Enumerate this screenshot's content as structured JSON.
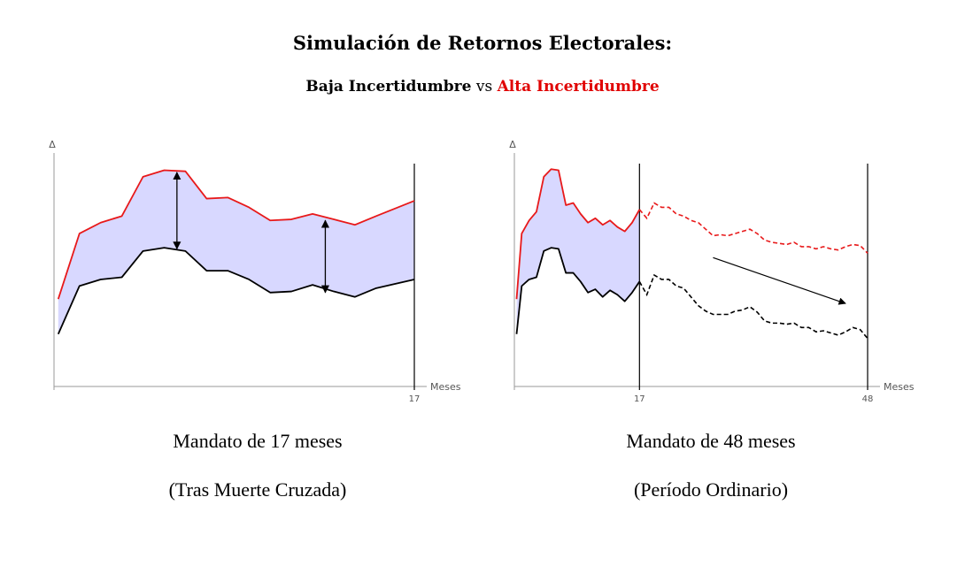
{
  "header": {
    "title": "Simulación de Retornos Electorales:",
    "subtitle_low": "Baja Incertidumbre",
    "subtitle_vs": "vs",
    "subtitle_high": "Alta Incertidumbre"
  },
  "colors": {
    "high": "#e8191a",
    "low": "#000000",
    "fill": "#d8d8ff"
  },
  "chart_data": [
    {
      "type": "line",
      "ylabel": "Δ",
      "xlabel": "Meses",
      "xticks": [
        "17"
      ],
      "xlim": [
        0,
        17
      ],
      "ylim": [
        0,
        10
      ],
      "area_between_series": true,
      "series": [
        {
          "style": "solid",
          "color": "#e8191a",
          "x": [
            0.2,
            1.2,
            2.2,
            3.2,
            4.2,
            5.2,
            6.2,
            7.2,
            8.2,
            9.2,
            10.2,
            11.2,
            12.2,
            13.2,
            14.2,
            15.2,
            17
          ],
          "y": [
            4.0,
            7.0,
            7.5,
            7.8,
            9.6,
            9.9,
            9.85,
            8.6,
            8.65,
            8.2,
            7.6,
            7.65,
            7.9,
            7.65,
            7.4,
            7.8,
            8.5
          ]
        },
        {
          "style": "solid",
          "color": "#000000",
          "x": [
            0.2,
            1.2,
            2.2,
            3.2,
            4.2,
            5.2,
            6.2,
            7.2,
            8.2,
            9.2,
            10.2,
            11.2,
            12.2,
            13.2,
            14.2,
            15.2,
            17
          ],
          "y": [
            2.4,
            4.6,
            4.9,
            5.0,
            6.2,
            6.35,
            6.2,
            5.3,
            5.3,
            4.9,
            4.3,
            4.35,
            4.65,
            4.35,
            4.1,
            4.5,
            4.9
          ]
        }
      ],
      "annotations": [
        {
          "type": "double-arrow",
          "x": 5.8,
          "y_from": 6.3,
          "y_to": 9.8
        },
        {
          "type": "double-arrow",
          "x": 12.8,
          "y_from": 4.3,
          "y_to": 7.6
        }
      ],
      "caption_line1": "Mandato de 17 meses",
      "caption_line2": "(Tras Muerte Cruzada)"
    },
    {
      "type": "line",
      "ylabel": "Δ",
      "xlabel": "Meses",
      "xticks": [
        "17",
        "48"
      ],
      "xlim": [
        0,
        48
      ],
      "ylim": [
        0,
        10
      ],
      "area_between_series": true,
      "area_until_x": 17,
      "dashed_after_x": 17,
      "series": [
        {
          "style": "solid-then-dashed",
          "color": "#e8191a",
          "x": [
            0.3,
            1,
            2,
            3,
            4,
            5,
            6,
            7,
            8,
            9,
            10,
            11,
            12,
            13,
            14,
            15,
            16,
            17,
            18,
            19,
            20,
            21,
            22,
            23,
            24,
            25,
            26,
            27,
            28,
            29,
            30,
            31,
            32,
            33,
            34,
            35,
            36,
            37,
            38,
            39,
            40,
            41,
            42,
            43,
            44,
            45,
            46,
            47,
            48
          ],
          "y": [
            4.0,
            7.0,
            7.6,
            8.0,
            9.6,
            9.95,
            9.9,
            8.3,
            8.4,
            7.9,
            7.5,
            7.7,
            7.4,
            7.6,
            7.3,
            7.1,
            7.5,
            8.1,
            7.7,
            8.4,
            8.2,
            8.2,
            7.9,
            7.8,
            7.6,
            7.5,
            7.2,
            6.9,
            6.95,
            6.9,
            7.0,
            7.1,
            7.2,
            7.0,
            6.7,
            6.6,
            6.55,
            6.5,
            6.6,
            6.4,
            6.4,
            6.3,
            6.4,
            6.3,
            6.25,
            6.4,
            6.5,
            6.45,
            6.1
          ]
        },
        {
          "style": "solid-then-dashed",
          "color": "#000000",
          "x": [
            0.3,
            1,
            2,
            3,
            4,
            5,
            6,
            7,
            8,
            9,
            10,
            11,
            12,
            13,
            14,
            15,
            16,
            17,
            18,
            19,
            20,
            21,
            22,
            23,
            24,
            25,
            26,
            27,
            28,
            29,
            30,
            31,
            32,
            33,
            34,
            35,
            36,
            37,
            38,
            39,
            40,
            41,
            42,
            43,
            44,
            45,
            46,
            47,
            48
          ],
          "y": [
            2.4,
            4.6,
            4.9,
            5.0,
            6.2,
            6.35,
            6.3,
            5.2,
            5.2,
            4.8,
            4.3,
            4.45,
            4.1,
            4.4,
            4.2,
            3.9,
            4.3,
            4.8,
            4.2,
            5.1,
            4.9,
            4.9,
            4.6,
            4.5,
            4.1,
            3.7,
            3.45,
            3.3,
            3.3,
            3.3,
            3.45,
            3.5,
            3.65,
            3.4,
            3.0,
            2.9,
            2.9,
            2.85,
            2.9,
            2.7,
            2.7,
            2.5,
            2.55,
            2.45,
            2.35,
            2.5,
            2.7,
            2.6,
            2.2
          ]
        }
      ],
      "annotations": [
        {
          "type": "arrow",
          "x_from": 27,
          "y_from": 5.9,
          "x_to": 45,
          "y_to": 3.8
        }
      ],
      "caption_line1": "Mandato de 48 meses",
      "caption_line2": "(Período Ordinario)"
    }
  ]
}
